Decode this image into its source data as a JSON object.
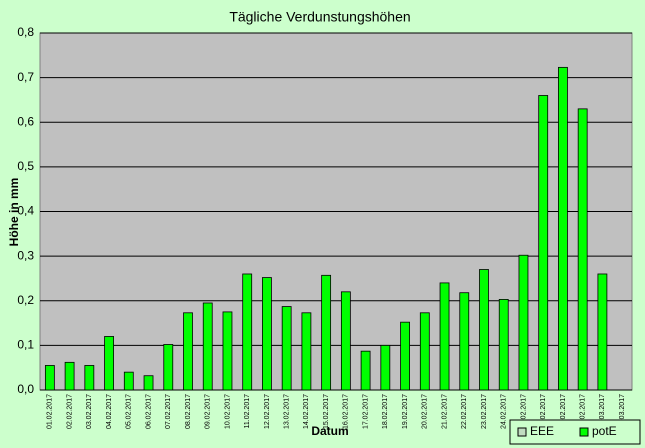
{
  "chart_data": {
    "type": "bar",
    "title": "Tägliche Verdunstungshöhen",
    "y_label": "Höhe in mm",
    "x_label": "Datum",
    "categories": [
      "01.02.2017",
      "02.02.2017",
      "03.02.2017",
      "04.02.2017",
      "05.02.2017",
      "06.02.2017",
      "07.02.2017",
      "08.02.2017",
      "09.02.2017",
      "10.02.2017",
      "11.02.2017",
      "12.02.2017",
      "13.02.2017",
      "14.02.2017",
      "15.02.2017",
      "16.02.2017",
      "17.02.2017",
      "18.02.2017",
      "19.02.2017",
      "20.02.2017",
      "21.02.2017",
      "22.02.2017",
      "23.02.2017",
      "24.02.2017",
      "25.02.2017",
      "26.02.2017",
      "27.02.2017",
      "28.02.2017",
      "01.03.2017",
      "02.03.2017"
    ],
    "series": [
      {
        "name": "EEE",
        "color": "#c0dcc0",
        "values": [
          null,
          null,
          null,
          null,
          null,
          null,
          null,
          null,
          null,
          null,
          null,
          null,
          null,
          null,
          null,
          null,
          null,
          null,
          null,
          null,
          null,
          null,
          null,
          null,
          null,
          null,
          null,
          null,
          null,
          null
        ]
      },
      {
        "name": "potE",
        "color": "#00ff00",
        "values": [
          0.055,
          0.062,
          0.055,
          0.12,
          0.04,
          0.032,
          0.102,
          0.173,
          0.195,
          0.175,
          0.26,
          0.252,
          0.187,
          0.173,
          0.257,
          0.22,
          0.087,
          0.1,
          0.152,
          0.173,
          0.24,
          0.218,
          0.27,
          0.203,
          0.302,
          0.66,
          0.723,
          0.63,
          0.26,
          null
        ]
      }
    ],
    "ylim": [
      0,
      0.8
    ],
    "yticks": [
      {
        "value": 0,
        "label": "0,0"
      },
      {
        "value": 0.1,
        "label": "0,1"
      },
      {
        "value": 0.2,
        "label": "0,2"
      },
      {
        "value": 0.3,
        "label": "0,3"
      },
      {
        "value": 0.4,
        "label": "0,4"
      },
      {
        "value": 0.5,
        "label": "0,5"
      },
      {
        "value": 0.6,
        "label": "0,6"
      },
      {
        "value": 0.7,
        "label": "0,7"
      },
      {
        "value": 0.8,
        "label": "0,8"
      }
    ],
    "grid": true
  }
}
